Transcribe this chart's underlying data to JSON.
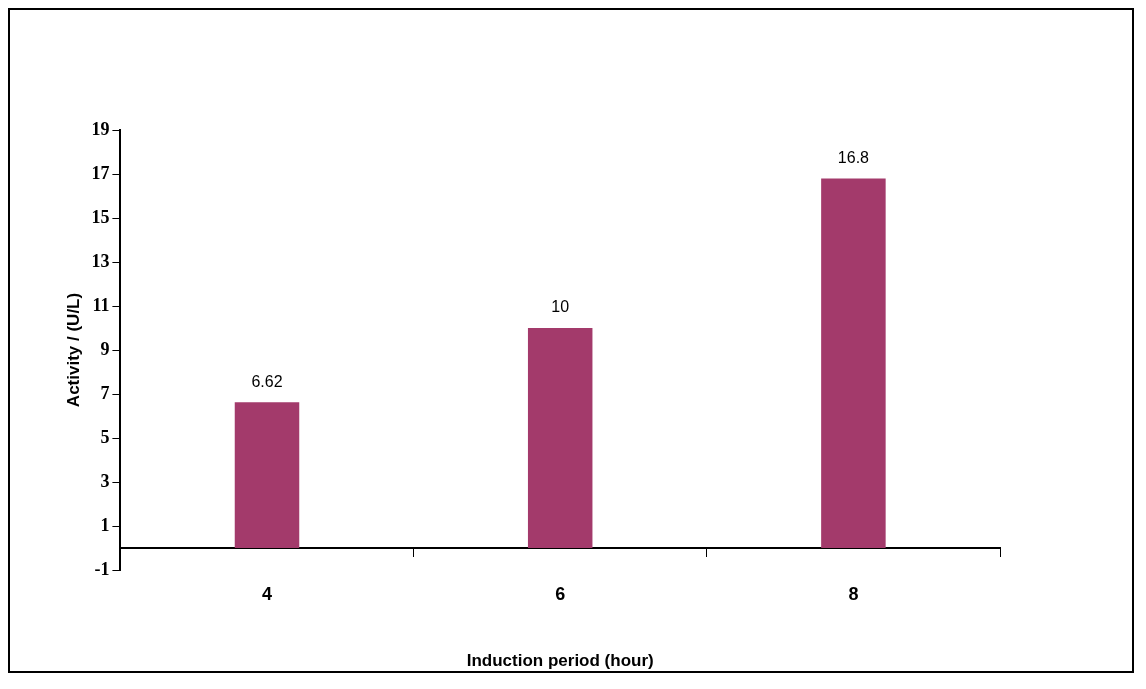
{
  "chart_data": {
    "type": "bar",
    "xlabel": "Induction period (hour)",
    "ylabel": "Activity / (U/L)",
    "categories": [
      "4",
      "6",
      "8"
    ],
    "values": [
      6.62,
      10,
      16.8
    ],
    "color": "#a33a6b",
    "ylim": [
      -1,
      19
    ],
    "yticks": [
      -1,
      1,
      3,
      5,
      7,
      9,
      11,
      13,
      15,
      17,
      19
    ],
    "data_labels": true,
    "grid": false,
    "legend": false
  }
}
